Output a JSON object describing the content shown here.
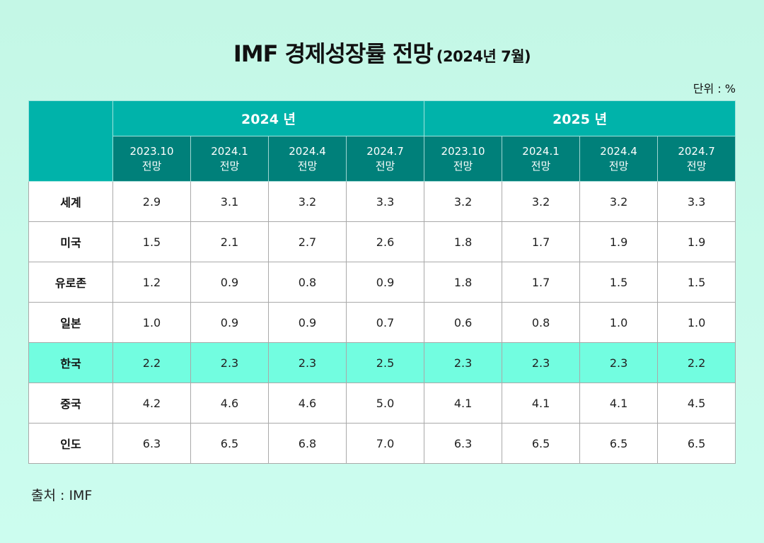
{
  "title": {
    "main": "IMF 경제성장률 전망",
    "sub": "(2024년 7월)"
  },
  "unit_label": "단위 : %",
  "source_label": "출처 : IMF",
  "colors": {
    "background": "#c4f7e6",
    "header_year": "#00b3aa",
    "header_period": "#00807a",
    "highlight_row": "#72fde0"
  },
  "chart_data": {
    "type": "table",
    "title": "IMF 경제성장률 전망 (2024년 7월)",
    "unit": "단위 : %",
    "year_groups": [
      {
        "label": "2024 년",
        "years": "2024"
      },
      {
        "label": "2025 년",
        "years": "2025"
      }
    ],
    "periods": [
      {
        "date": "2023.10",
        "suffix": "전망"
      },
      {
        "date": "2024.1",
        "suffix": "전망"
      },
      {
        "date": "2024.4",
        "suffix": "전망"
      },
      {
        "date": "2024.7",
        "suffix": "전망"
      },
      {
        "date": "2023.10",
        "suffix": "전망"
      },
      {
        "date": "2024.1",
        "suffix": "전망"
      },
      {
        "date": "2024.4",
        "suffix": "전망"
      },
      {
        "date": "2024.7",
        "suffix": "전망"
      }
    ],
    "rows": [
      {
        "country": "세계",
        "values": [
          "2.9",
          "3.1",
          "3.2",
          "3.3",
          "3.2",
          "3.2",
          "3.2",
          "3.3"
        ],
        "highlight": false
      },
      {
        "country": "미국",
        "values": [
          "1.5",
          "2.1",
          "2.7",
          "2.6",
          "1.8",
          "1.7",
          "1.9",
          "1.9"
        ],
        "highlight": false
      },
      {
        "country": "유로존",
        "values": [
          "1.2",
          "0.9",
          "0.8",
          "0.9",
          "1.8",
          "1.7",
          "1.5",
          "1.5"
        ],
        "highlight": false
      },
      {
        "country": "일본",
        "values": [
          "1.0",
          "0.9",
          "0.9",
          "0.7",
          "0.6",
          "0.8",
          "1.0",
          "1.0"
        ],
        "highlight": false
      },
      {
        "country": "한국",
        "values": [
          "2.2",
          "2.3",
          "2.3",
          "2.5",
          "2.3",
          "2.3",
          "2.3",
          "2.2"
        ],
        "highlight": true
      },
      {
        "country": "중국",
        "values": [
          "4.2",
          "4.6",
          "4.6",
          "5.0",
          "4.1",
          "4.1",
          "4.1",
          "4.5"
        ],
        "highlight": false
      },
      {
        "country": "인도",
        "values": [
          "6.3",
          "6.5",
          "6.8",
          "7.0",
          "6.3",
          "6.5",
          "6.5",
          "6.5"
        ],
        "highlight": false
      }
    ],
    "source": "출처 : IMF"
  }
}
